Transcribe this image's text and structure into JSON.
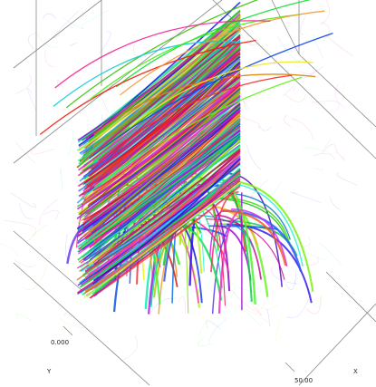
{
  "tick_labels": [
    "0.000",
    "50.00"
  ],
  "axis_names": [
    "Y",
    "X"
  ]
}
